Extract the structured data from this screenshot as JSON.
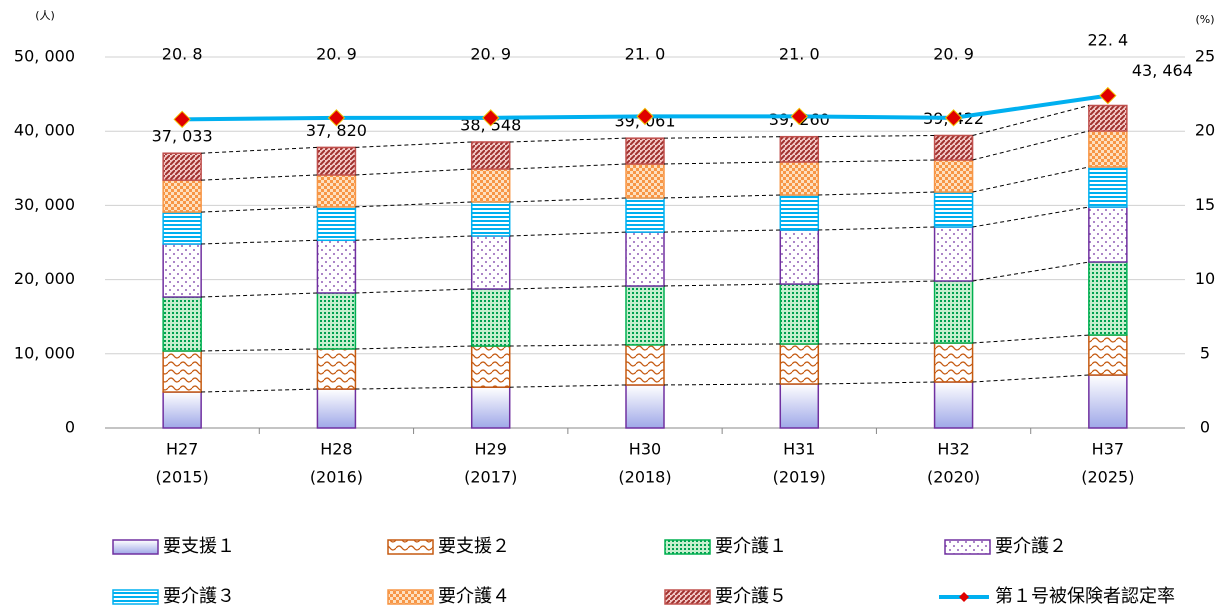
{
  "chart_data": {
    "type": "bar",
    "stacked": true,
    "y_unit": "(人)",
    "y2_unit": "(%)",
    "categories": [
      [
        "H27",
        "(2015)"
      ],
      [
        "H28",
        "(2016)"
      ],
      [
        "H29",
        "(2017)"
      ],
      [
        "H30",
        "(2018)"
      ],
      [
        "H31",
        "(2019)"
      ],
      [
        "H32",
        "(2020)"
      ],
      [
        "H37",
        "(2025)"
      ]
    ],
    "ylim": [
      0,
      50000
    ],
    "yticks": [
      0,
      {
        "value": 10000,
        "label": "10, 000"
      },
      {
        "value": 20000,
        "label": "20, 000"
      },
      {
        "value": 30000,
        "label": "30, 000"
      },
      {
        "value": 40000,
        "label": "40, 000"
      },
      {
        "value": 50000,
        "label": "50, 000"
      }
    ],
    "y2lim": [
      0,
      25
    ],
    "y2ticks": [
      0,
      5,
      10,
      15,
      20,
      25
    ],
    "grid": true,
    "series": [
      {
        "name": "要支援１",
        "color": "#7030a0",
        "pattern": "gradient",
        "values": [
          4850,
          5250,
          5500,
          5800,
          5930,
          6200,
          7140
        ]
      },
      {
        "name": "要支援２",
        "color": "#c55a11",
        "pattern": "wave",
        "values": [
          5530,
          5400,
          5550,
          5400,
          5390,
          5250,
          5390
        ]
      },
      {
        "name": "要介護１",
        "color": "#00b050",
        "pattern": "dots",
        "values": [
          7270,
          7550,
          7680,
          7940,
          8080,
          8360,
          9840
        ]
      },
      {
        "name": "要介護２",
        "color": "#7030a0",
        "pattern": "sparse",
        "values": [
          7150,
          7100,
          7150,
          7260,
          7280,
          7280,
          7410
        ]
      },
      {
        "name": "要介護３",
        "color": "#00b0f0",
        "pattern": "hlines",
        "values": [
          4300,
          4500,
          4580,
          4600,
          4720,
          4710,
          5400
        ]
      },
      {
        "name": "要介護４",
        "color": "#f79646",
        "pattern": "check",
        "values": [
          4300,
          4300,
          4440,
          4580,
          4450,
          4320,
          4850
        ]
      },
      {
        "name": "要介護５",
        "color": "#c0504d",
        "pattern": "diag",
        "values": [
          3633,
          3720,
          3648,
          3481,
          3410,
          3302,
          3434
        ]
      },
      {
        "name": "第１号被保険者認定率",
        "type": "line",
        "axis": "y2",
        "color": "#00b0f0",
        "marker_color": "#e00000",
        "values": [
          20.8,
          20.9,
          20.9,
          21.0,
          21.0,
          20.9,
          22.4
        ],
        "value_labels": [
          "20. 8",
          "20. 9",
          "20. 9",
          "21. 0",
          "21. 0",
          "20. 9",
          "22. 4"
        ]
      }
    ],
    "totals": {
      "values": [
        37033,
        37820,
        38548,
        39061,
        39260,
        39422,
        43464
      ],
      "value_labels": [
        "37, 033",
        "37, 820",
        "38, 548",
        "39, 061",
        "39, 260",
        "39, 422",
        "43, 464"
      ]
    }
  }
}
